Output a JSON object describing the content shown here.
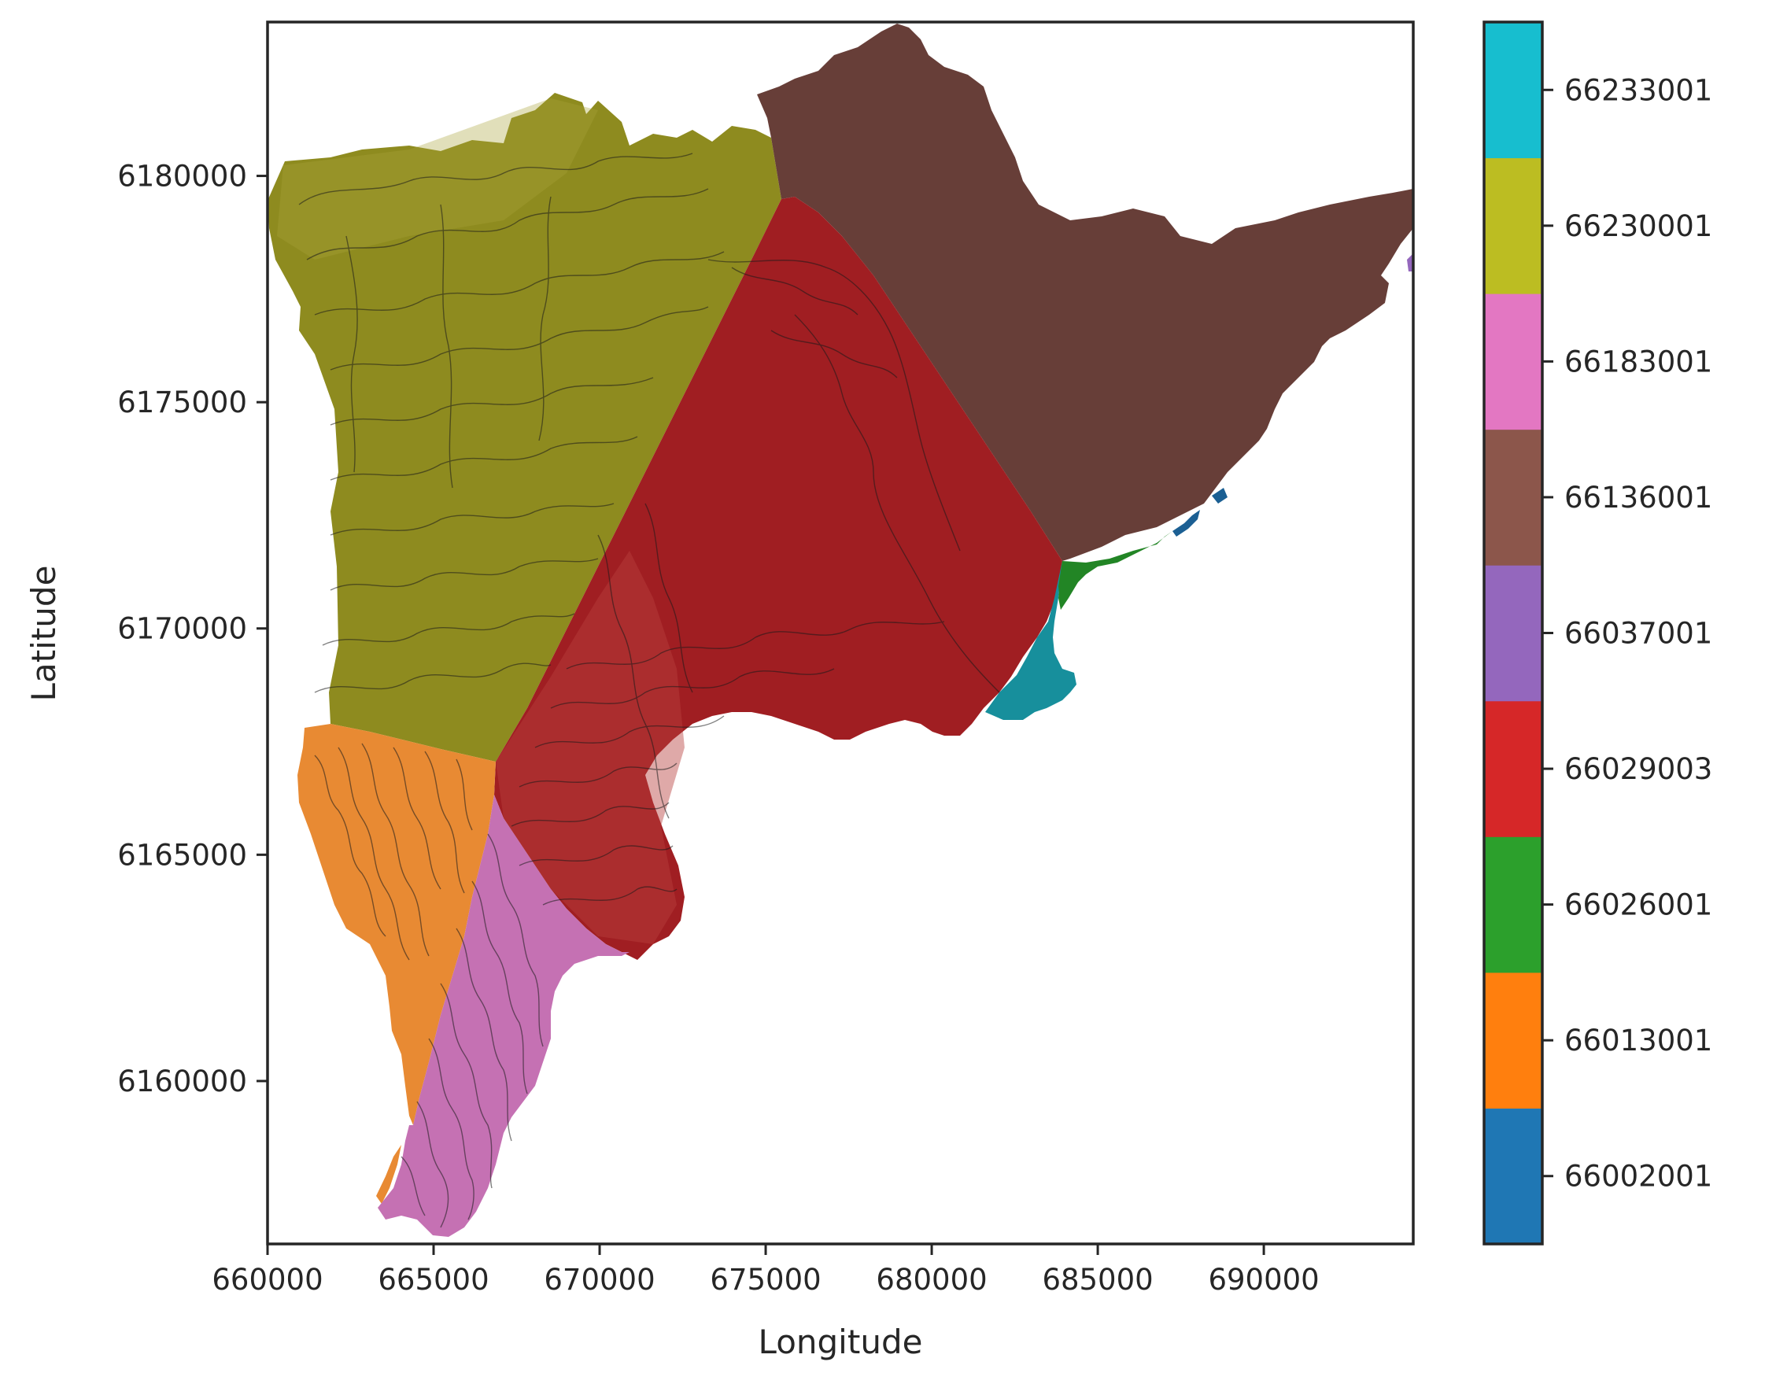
{
  "map": {
    "xlabel": "Longitude",
    "ylabel": "Latitude",
    "xlim": [
      660000,
      694500
    ],
    "ylim": [
      6156400,
      6183400
    ],
    "x_ticks": [
      660000,
      665000,
      670000,
      675000,
      680000,
      685000,
      690000
    ],
    "y_ticks": [
      6160000,
      6165000,
      6170000,
      6175000,
      6180000
    ],
    "x_tick_labels": [
      "660000",
      "665000",
      "670000",
      "675000",
      "680000",
      "685000",
      "690000"
    ],
    "y_tick_labels": [
      "6160000",
      "6165000",
      "6170000",
      "6175000",
      "6180000"
    ],
    "contour_lines": "thin dark contour lines overlaid on the regions"
  },
  "colorbar": {
    "entries": [
      {
        "label": "66002001",
        "color": "#1f77b4"
      },
      {
        "label": "66013001",
        "color": "#ff7f0e"
      },
      {
        "label": "66026001",
        "color": "#2ca02c"
      },
      {
        "label": "66029003",
        "color": "#d62728"
      },
      {
        "label": "66037001",
        "color": "#9467bd"
      },
      {
        "label": "66136001",
        "color": "#8c564b"
      },
      {
        "label": "66183001",
        "color": "#e377c2"
      },
      {
        "label": "66230001",
        "color": "#bcbd22"
      },
      {
        "label": "66233001",
        "color": "#17becf"
      }
    ]
  },
  "regions": [
    {
      "name": "66230001",
      "color": "#8e8b1f"
    },
    {
      "name": "66029003",
      "color": "#a01e22"
    },
    {
      "name": "66136001",
      "color": "#673e38"
    },
    {
      "name": "66013001",
      "color": "#e88a33"
    },
    {
      "name": "66183001",
      "color": "#c571b3"
    },
    {
      "name": "66233001",
      "color": "#178f9c"
    },
    {
      "name": "66026001",
      "color": "#228525"
    },
    {
      "name": "66002001",
      "color": "#1b5f93"
    },
    {
      "name": "66037001",
      "color": "#9467bd"
    }
  ]
}
